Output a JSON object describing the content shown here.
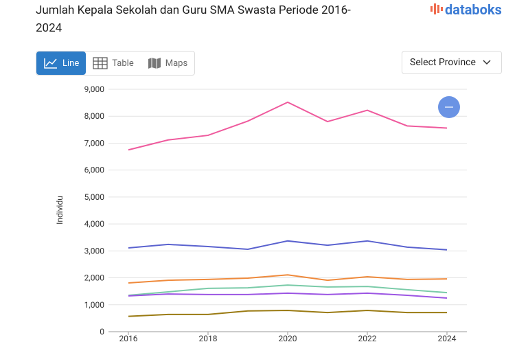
{
  "ui": {
    "logo": "databoks",
    "tabs": [
      "Line",
      "Table",
      "Maps"
    ],
    "select": "Select Province"
  },
  "chart_data": {
    "type": "line",
    "title": "Jumlah Kepala Sekolah dan Guru SMA Swasta Periode 2016-2024",
    "y_label": "Individu",
    "x": [
      2016,
      2017,
      2018,
      2019,
      2020,
      2021,
      2022,
      2023,
      2024
    ],
    "xlim": [
      2015.5,
      2024.5
    ],
    "xticks": [
      2016,
      2018,
      2020,
      2022,
      2024
    ],
    "ylim": [
      0,
      9000
    ],
    "yticks": [
      0,
      {
        "value": 1000,
        "label": "1,000"
      },
      {
        "value": 2000,
        "label": "2,000"
      },
      {
        "value": 3000,
        "label": "3,000"
      },
      {
        "value": 4000,
        "label": "4,000"
      },
      {
        "value": 5000,
        "label": "5,000"
      },
      {
        "value": 6000,
        "label": "6,000"
      },
      {
        "value": 7000,
        "label": "7,000"
      },
      {
        "value": 8000,
        "label": "8,000"
      },
      {
        "value": 9000,
        "label": "9,000"
      }
    ],
    "grid": true,
    "series": [
      {
        "color": "#ef5a9d",
        "values": [
          6750,
          7120,
          7290,
          7820,
          8520,
          7800,
          8220,
          7640,
          7560
        ]
      },
      {
        "color": "#5a62cf",
        "values": [
          3110,
          3240,
          3160,
          3060,
          3370,
          3210,
          3370,
          3140,
          3040
        ]
      },
      {
        "color": "#ef8a3c",
        "values": [
          1810,
          1910,
          1940,
          1990,
          2110,
          1910,
          2040,
          1940,
          1960
        ]
      },
      {
        "color": "#7acba8",
        "values": [
          1350,
          1480,
          1610,
          1630,
          1730,
          1660,
          1680,
          1560,
          1450
        ]
      },
      {
        "color": "#9c55e3",
        "values": [
          1330,
          1400,
          1380,
          1380,
          1430,
          1380,
          1430,
          1350,
          1250
        ]
      },
      {
        "color": "#9a7a12",
        "values": [
          570,
          640,
          640,
          770,
          790,
          710,
          790,
          710,
          710
        ]
      }
    ]
  }
}
